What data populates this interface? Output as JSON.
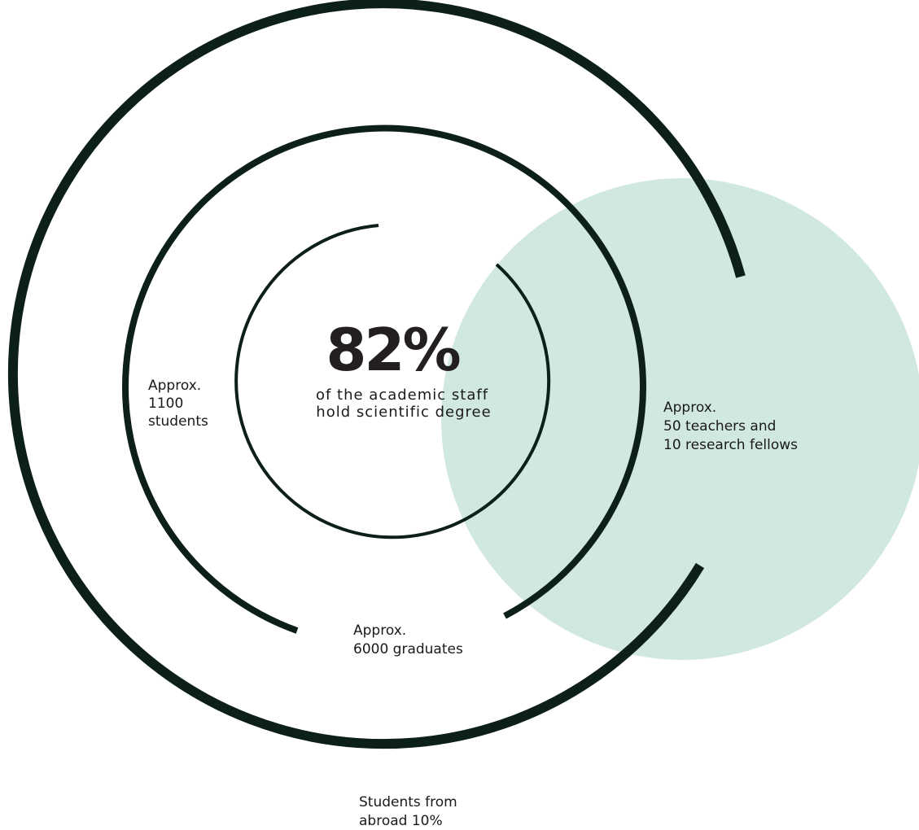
{
  "center": {
    "value": "82%",
    "caption": [
      "of the academic staff",
      "hold scientific degree"
    ]
  },
  "labels": [
    {
      "lines": [
        "Approx.",
        "1100",
        "students"
      ]
    },
    {
      "lines": [
        "Approx.",
        "50 teachers and",
        "10 research fellows"
      ]
    },
    {
      "lines": [
        "Approx.",
        "6000 graduates"
      ]
    },
    {
      "lines": [
        "Students from",
        "abroad 10%"
      ]
    }
  ]
}
